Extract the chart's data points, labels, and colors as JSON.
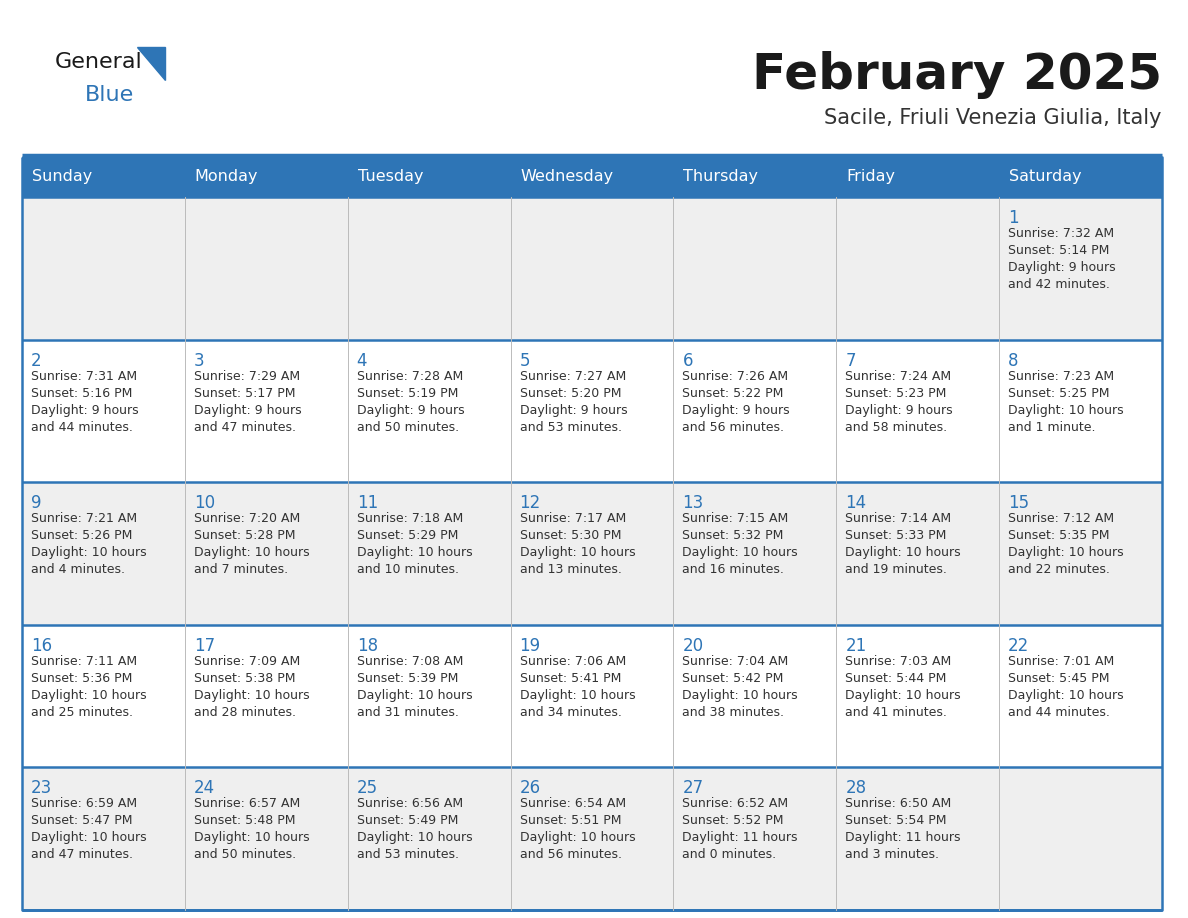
{
  "title": "February 2025",
  "subtitle": "Sacile, Friuli Venezia Giulia, Italy",
  "days_of_week": [
    "Sunday",
    "Monday",
    "Tuesday",
    "Wednesday",
    "Thursday",
    "Friday",
    "Saturday"
  ],
  "header_bg": "#2E75B6",
  "header_text": "#FFFFFF",
  "row_bg_odd": "#EFEFEF",
  "row_bg_even": "#FFFFFF",
  "border_color": "#2E75B6",
  "text_color_day": "#2E75B6",
  "text_color_info": "#333333",
  "logo_general_color": "#1A1A1A",
  "logo_blue_color": "#2E75B6",
  "calendar_data": [
    [
      {
        "day": null,
        "sunrise": null,
        "sunset": null,
        "daylight": null
      },
      {
        "day": null,
        "sunrise": null,
        "sunset": null,
        "daylight": null
      },
      {
        "day": null,
        "sunrise": null,
        "sunset": null,
        "daylight": null
      },
      {
        "day": null,
        "sunrise": null,
        "sunset": null,
        "daylight": null
      },
      {
        "day": null,
        "sunrise": null,
        "sunset": null,
        "daylight": null
      },
      {
        "day": null,
        "sunrise": null,
        "sunset": null,
        "daylight": null
      },
      {
        "day": 1,
        "sunrise": "7:32 AM",
        "sunset": "5:14 PM",
        "daylight": "9 hours\nand 42 minutes."
      }
    ],
    [
      {
        "day": 2,
        "sunrise": "7:31 AM",
        "sunset": "5:16 PM",
        "daylight": "9 hours\nand 44 minutes."
      },
      {
        "day": 3,
        "sunrise": "7:29 AM",
        "sunset": "5:17 PM",
        "daylight": "9 hours\nand 47 minutes."
      },
      {
        "day": 4,
        "sunrise": "7:28 AM",
        "sunset": "5:19 PM",
        "daylight": "9 hours\nand 50 minutes."
      },
      {
        "day": 5,
        "sunrise": "7:27 AM",
        "sunset": "5:20 PM",
        "daylight": "9 hours\nand 53 minutes."
      },
      {
        "day": 6,
        "sunrise": "7:26 AM",
        "sunset": "5:22 PM",
        "daylight": "9 hours\nand 56 minutes."
      },
      {
        "day": 7,
        "sunrise": "7:24 AM",
        "sunset": "5:23 PM",
        "daylight": "9 hours\nand 58 minutes."
      },
      {
        "day": 8,
        "sunrise": "7:23 AM",
        "sunset": "5:25 PM",
        "daylight": "10 hours\nand 1 minute."
      }
    ],
    [
      {
        "day": 9,
        "sunrise": "7:21 AM",
        "sunset": "5:26 PM",
        "daylight": "10 hours\nand 4 minutes."
      },
      {
        "day": 10,
        "sunrise": "7:20 AM",
        "sunset": "5:28 PM",
        "daylight": "10 hours\nand 7 minutes."
      },
      {
        "day": 11,
        "sunrise": "7:18 AM",
        "sunset": "5:29 PM",
        "daylight": "10 hours\nand 10 minutes."
      },
      {
        "day": 12,
        "sunrise": "7:17 AM",
        "sunset": "5:30 PM",
        "daylight": "10 hours\nand 13 minutes."
      },
      {
        "day": 13,
        "sunrise": "7:15 AM",
        "sunset": "5:32 PM",
        "daylight": "10 hours\nand 16 minutes."
      },
      {
        "day": 14,
        "sunrise": "7:14 AM",
        "sunset": "5:33 PM",
        "daylight": "10 hours\nand 19 minutes."
      },
      {
        "day": 15,
        "sunrise": "7:12 AM",
        "sunset": "5:35 PM",
        "daylight": "10 hours\nand 22 minutes."
      }
    ],
    [
      {
        "day": 16,
        "sunrise": "7:11 AM",
        "sunset": "5:36 PM",
        "daylight": "10 hours\nand 25 minutes."
      },
      {
        "day": 17,
        "sunrise": "7:09 AM",
        "sunset": "5:38 PM",
        "daylight": "10 hours\nand 28 minutes."
      },
      {
        "day": 18,
        "sunrise": "7:08 AM",
        "sunset": "5:39 PM",
        "daylight": "10 hours\nand 31 minutes."
      },
      {
        "day": 19,
        "sunrise": "7:06 AM",
        "sunset": "5:41 PM",
        "daylight": "10 hours\nand 34 minutes."
      },
      {
        "day": 20,
        "sunrise": "7:04 AM",
        "sunset": "5:42 PM",
        "daylight": "10 hours\nand 38 minutes."
      },
      {
        "day": 21,
        "sunrise": "7:03 AM",
        "sunset": "5:44 PM",
        "daylight": "10 hours\nand 41 minutes."
      },
      {
        "day": 22,
        "sunrise": "7:01 AM",
        "sunset": "5:45 PM",
        "daylight": "10 hours\nand 44 minutes."
      }
    ],
    [
      {
        "day": 23,
        "sunrise": "6:59 AM",
        "sunset": "5:47 PM",
        "daylight": "10 hours\nand 47 minutes."
      },
      {
        "day": 24,
        "sunrise": "6:57 AM",
        "sunset": "5:48 PM",
        "daylight": "10 hours\nand 50 minutes."
      },
      {
        "day": 25,
        "sunrise": "6:56 AM",
        "sunset": "5:49 PM",
        "daylight": "10 hours\nand 53 minutes."
      },
      {
        "day": 26,
        "sunrise": "6:54 AM",
        "sunset": "5:51 PM",
        "daylight": "10 hours\nand 56 minutes."
      },
      {
        "day": 27,
        "sunrise": "6:52 AM",
        "sunset": "5:52 PM",
        "daylight": "11 hours\nand 0 minutes."
      },
      {
        "day": 28,
        "sunrise": "6:50 AM",
        "sunset": "5:54 PM",
        "daylight": "11 hours\nand 3 minutes."
      },
      {
        "day": null,
        "sunrise": null,
        "sunset": null,
        "daylight": null
      }
    ]
  ],
  "fig_width": 11.88,
  "fig_height": 9.18,
  "dpi": 100
}
